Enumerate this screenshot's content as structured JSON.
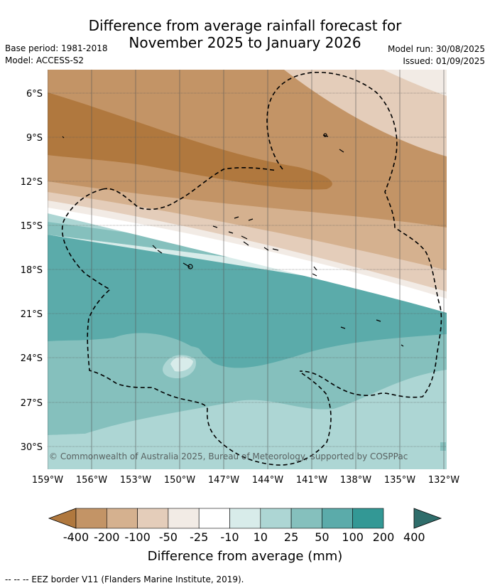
{
  "title_line1": "Difference from average rainfall forecast for",
  "title_line2": "November 2025 to January 2026",
  "base_period": "Base period: 1981-2018",
  "model": "Model: ACCESS-S2",
  "model_run": "Model run: 30/08/2025",
  "issued": "Issued: 01/09/2025",
  "copyright": "© Commonwealth of Australia 2025, Bureau of Meteorology, supported by COSPPac",
  "footnote": "-- -- -- EEZ border V11 (Flanders Marine Institute, 2019).",
  "lat_ticks": [
    "6°S",
    "9°S",
    "12°S",
    "15°S",
    "18°S",
    "21°S",
    "24°S",
    "27°S",
    "30°S"
  ],
  "lon_ticks": [
    "159°W",
    "156°W",
    "153°W",
    "150°W",
    "147°W",
    "144°W",
    "141°W",
    "138°W",
    "135°W",
    "132°W"
  ],
  "legend": {
    "title": "Difference from average (mm)",
    "labels": [
      "-400",
      "-200",
      "-100",
      "-50",
      "-25",
      "-10",
      "10",
      "25",
      "50",
      "100",
      "200",
      "400"
    ],
    "colors": [
      "#b0783e",
      "#c39466",
      "#d5b18f",
      "#e4cdba",
      "#f2ebe5",
      "#ffffff",
      "#d8ecea",
      "#add6d4",
      "#85c0bd",
      "#5babaa",
      "#339895",
      "#2f6d6b"
    ]
  }
}
